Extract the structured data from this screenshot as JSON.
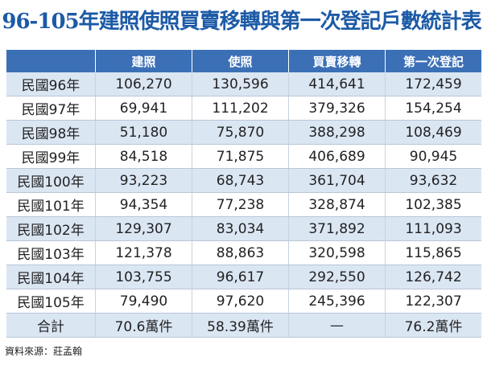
{
  "header": {
    "title": "96-105年建照使照買賣移轉與第一次登記戶數統計表"
  },
  "table": {
    "columns": [
      "",
      "建照",
      "使照",
      "買賣移轉",
      "第一次登記"
    ],
    "rows": [
      [
        "民國96年",
        "106,270",
        "130,596",
        "414,641",
        "172,459"
      ],
      [
        "民國97年",
        "69,941",
        "111,202",
        "379,326",
        "154,254"
      ],
      [
        "民國98年",
        "51,180",
        "75,870",
        "388,298",
        "108,469"
      ],
      [
        "民國99年",
        "84,518",
        "71,875",
        "406,689",
        "90,945"
      ],
      [
        "民國100年",
        "93,223",
        "68,743",
        "361,704",
        "93,632"
      ],
      [
        "民國101年",
        "94,354",
        "77,238",
        "328,874",
        "102,385"
      ],
      [
        "民國102年",
        "129,307",
        "83,034",
        "371,892",
        "111,093"
      ],
      [
        "民國103年",
        "121,378",
        "88,863",
        "320,598",
        "115,865"
      ],
      [
        "民國104年",
        "103,755",
        "96,617",
        "292,550",
        "126,742"
      ],
      [
        "民國105年",
        "79,490",
        "97,620",
        "245,396",
        "122,307"
      ],
      [
        "合計",
        "70.6萬件",
        "58.39萬件",
        "—",
        "76.2萬件"
      ]
    ]
  },
  "footer": {
    "source": "資料來源：莊孟翰"
  }
}
